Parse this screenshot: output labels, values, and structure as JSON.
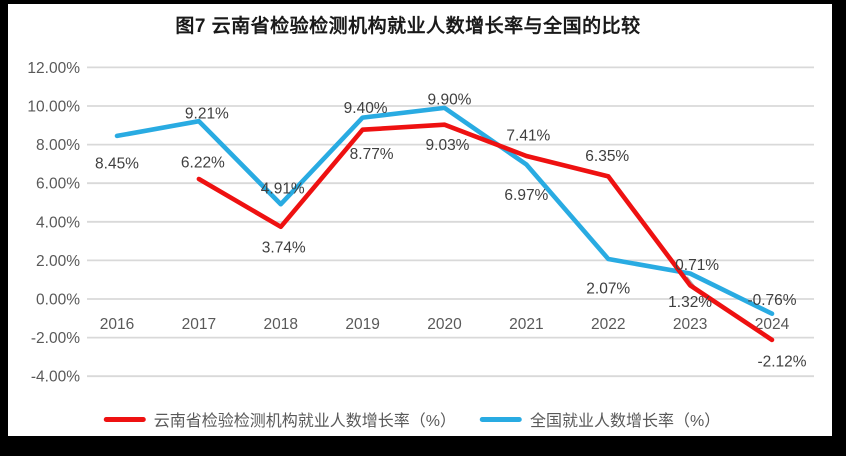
{
  "page": {
    "frame_color": "#000000",
    "chart_background": "#ffffff"
  },
  "chart_data": {
    "type": "line",
    "title": "图7  云南省检验检测机构就业人数增长率与全国的比较",
    "categories": [
      "2016",
      "2017",
      "2018",
      "2019",
      "2020",
      "2021",
      "2022",
      "2023",
      "2024"
    ],
    "series": [
      {
        "name": "云南省检验检测机构就业人数增长率（%）",
        "color": "#ee1111",
        "values": [
          null,
          6.22,
          3.74,
          8.77,
          9.03,
          7.41,
          6.35,
          0.71,
          -2.12
        ],
        "label_offsets": [
          null,
          [
            4,
            -17
          ],
          [
            3,
            20
          ],
          [
            9,
            24
          ],
          [
            3,
            20
          ],
          [
            2,
            -21
          ],
          [
            -1,
            -21
          ],
          [
            7,
            -21
          ],
          [
            10,
            21
          ]
        ]
      },
      {
        "name": "全国就业人数增长率（%）",
        "color": "#29abe2",
        "values": [
          8.45,
          9.21,
          4.91,
          9.4,
          9.9,
          6.97,
          2.07,
          1.32,
          -0.76
        ],
        "label_offsets": [
          [
            0,
            27
          ],
          [
            8,
            -8
          ],
          [
            2,
            -16
          ],
          [
            3,
            -10
          ],
          [
            5,
            -9
          ],
          [
            0,
            30
          ],
          [
            0,
            29
          ],
          [
            0,
            28
          ],
          [
            0,
            -14
          ]
        ]
      }
    ],
    "y_axis": {
      "min": -4,
      "max": 12,
      "tick_step": 2,
      "tick_format": "0.00%"
    },
    "value_label_format": "0.00%",
    "grid": true,
    "legend_position": "bottom",
    "layout_hints": {
      "grid_color": "#d9d9d9",
      "axis_text_color": "#595959",
      "data_label_color": "#3f3f3f",
      "leader_line_at": "2023"
    }
  }
}
